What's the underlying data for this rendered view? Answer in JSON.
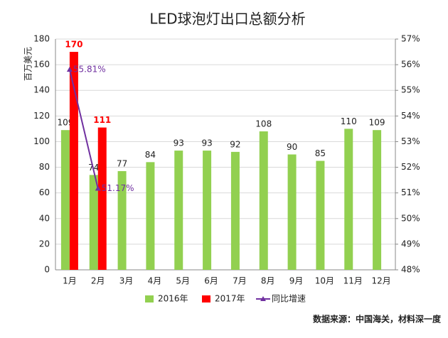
{
  "chart_data": {
    "type": "bar-line",
    "title": "LED球泡灯出口总额分析",
    "ylabel": "百万美元",
    "categories": [
      "1月",
      "2月",
      "3月",
      "4月",
      "5月",
      "6月",
      "7月",
      "8月",
      "9月",
      "10月",
      "11月",
      "12月"
    ],
    "series": [
      {
        "name": "2016年",
        "color": "#92d050",
        "type": "bar",
        "values": [
          109,
          74,
          77,
          84,
          93,
          93,
          92,
          108,
          90,
          85,
          110,
          109
        ]
      },
      {
        "name": "2017年",
        "color": "#ff0000",
        "type": "bar",
        "values": [
          170,
          111,
          null,
          null,
          null,
          null,
          null,
          null,
          null,
          null,
          null,
          null
        ]
      },
      {
        "name": "同比增速",
        "color": "#7030a0",
        "type": "line",
        "axis": "y2",
        "values": [
          55.81,
          51.17,
          null,
          null,
          null,
          null,
          null,
          null,
          null,
          null,
          null,
          null
        ],
        "value_labels": [
          "55.81%",
          "51.17%",
          null,
          null,
          null,
          null,
          null,
          null,
          null,
          null,
          null,
          null
        ]
      }
    ],
    "ylim": [
      0,
      180
    ],
    "yticks": [
      0,
      20,
      40,
      60,
      80,
      100,
      120,
      140,
      160,
      180
    ],
    "y2lim": [
      48,
      57
    ],
    "y2ticks": [
      {
        "value": 48,
        "label": "48%"
      },
      {
        "value": 49,
        "label": "49%"
      },
      {
        "value": 50,
        "label": "50%"
      },
      {
        "value": 51,
        "label": "51%"
      },
      {
        "value": 52,
        "label": "52%"
      },
      {
        "value": 53,
        "label": "53%"
      },
      {
        "value": 54,
        "label": "54%"
      },
      {
        "value": 55,
        "label": "55%"
      },
      {
        "value": 56,
        "label": "56%"
      },
      {
        "value": 57,
        "label": "57%"
      }
    ],
    "grid": true,
    "legend": "bottom",
    "source": "数据来源：中国海关，材料深一度"
  }
}
